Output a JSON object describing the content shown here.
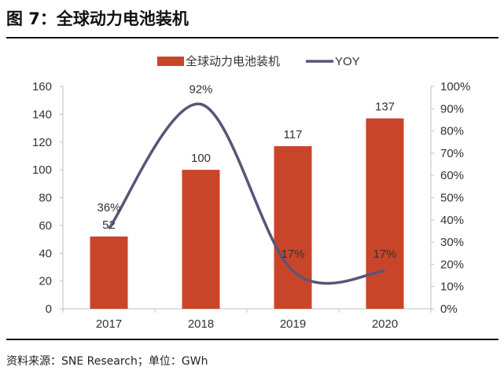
{
  "title": "图 7：全球动力电池装机",
  "source": "资料来源：SNE Research；单位：GWh",
  "colors": {
    "bar": "#c9452a",
    "line": "#5b5478",
    "axis": "#bfbfbf"
  },
  "chart_data": {
    "type": "bar+line",
    "categories": [
      "2017",
      "2018",
      "2019",
      "2020"
    ],
    "series": [
      {
        "name": "全球动力电池装机",
        "type": "bar",
        "axis": "left",
        "values": [
          52,
          100,
          117,
          137
        ],
        "labels": [
          "52",
          "100",
          "117",
          "137"
        ]
      },
      {
        "name": "YOY",
        "type": "line",
        "axis": "right",
        "smooth": true,
        "values": [
          36,
          92,
          17,
          17
        ],
        "labels": [
          "36%",
          "92%",
          "17%",
          "17%"
        ]
      }
    ],
    "y_left": {
      "range": [
        0,
        160
      ],
      "ticks": [
        "0",
        "20",
        "40",
        "60",
        "80",
        "100",
        "120",
        "140",
        "160"
      ]
    },
    "y_right": {
      "range": [
        0,
        100
      ],
      "ticks": [
        "0%",
        "10%",
        "20%",
        "30%",
        "40%",
        "50%",
        "60%",
        "70%",
        "80%",
        "90%",
        "100%"
      ]
    },
    "grid": false,
    "legend": "top"
  }
}
